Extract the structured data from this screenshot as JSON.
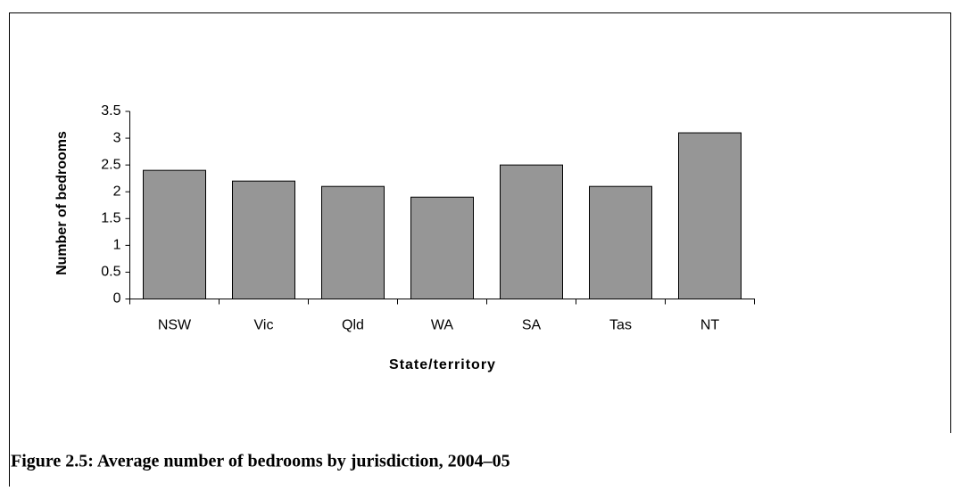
{
  "chart_data": {
    "type": "bar",
    "categories": [
      "NSW",
      "Vic",
      "Qld",
      "WA",
      "SA",
      "Tas",
      "NT"
    ],
    "values": [
      2.4,
      2.2,
      2.1,
      1.9,
      2.5,
      2.1,
      3.1
    ],
    "color": "#969696",
    "xlabel": "State/territory",
    "ylabel": "Number of bedrooms",
    "ylim": [
      0,
      3.5
    ],
    "yticks": [
      0,
      0.5,
      1,
      1.5,
      2,
      2.5,
      3,
      3.5
    ],
    "grid": false
  },
  "caption": "Figure 2.5: Average number of bedrooms by jurisdiction, 2004–05"
}
